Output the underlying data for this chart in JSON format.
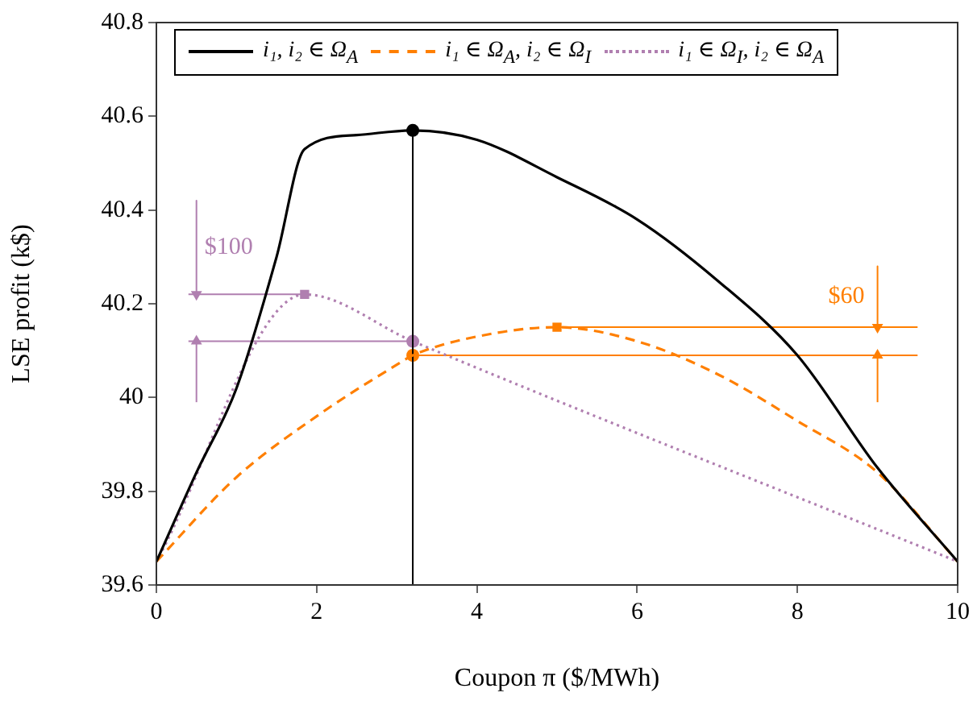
{
  "chart_data": {
    "type": "line",
    "xlabel": "Coupon π ($/MWh)",
    "ylabel": "LSE profit (k$)",
    "xlim": [
      0,
      10
    ],
    "xticks": [
      0,
      2,
      4,
      6,
      8,
      10
    ],
    "ylim": [
      39.6,
      40.8
    ],
    "yticks": [
      39.6,
      39.8,
      40,
      40.2,
      40.4,
      40.6,
      40.8
    ],
    "grid": false,
    "legend": "top",
    "marker": "none",
    "series": [
      {
        "name": "i₁, i₂ ∈ Ω$_{A}$",
        "type": "line",
        "color": "#000000",
        "line_style": "solid",
        "x": [
          0,
          0.5,
          1,
          1.5,
          1.85,
          2.5,
          3.2,
          4,
          5,
          6,
          7,
          8,
          9,
          10
        ],
        "values": [
          39.65,
          39.84,
          40.02,
          40.3,
          40.53,
          40.56,
          40.57,
          40.55,
          40.47,
          40.38,
          40.25,
          40.09,
          39.85,
          39.65
        ]
      },
      {
        "name": "i₁ ∈ Ω$_{A}$, i₂ ∈ Ω$_{I}$",
        "type": "line",
        "color": "#ff7f00",
        "line_style": "dashed",
        "x": [
          0,
          1,
          2,
          3,
          3.2,
          4,
          5,
          6,
          7,
          8,
          9,
          10
        ],
        "values": [
          39.65,
          39.83,
          39.96,
          40.07,
          40.09,
          40.13,
          40.15,
          40.12,
          40.05,
          39.95,
          39.84,
          39.65
        ]
      },
      {
        "name": "i₁ ∈ Ω$_{I}$, i₂ ∈ Ω$_{A}$",
        "type": "line",
        "color": "#b07fb0",
        "line_style": "dotted",
        "x": [
          0,
          1.85,
          3.2,
          10
        ],
        "values": [
          39.65,
          40.22,
          40.12,
          39.65
        ]
      },
      {
        "type": "line",
        "color": "#000000",
        "line_style": "solid",
        "x": [
          3.2,
          3.2
        ],
        "values": [
          39.6,
          40.57
        ]
      },
      {
        "type": "line",
        "color": "#b07fb0",
        "line_style": "solid",
        "x": [
          0.4,
          1.85
        ],
        "values": [
          40.22,
          40.22
        ]
      },
      {
        "type": "line",
        "color": "#b07fb0",
        "line_style": "solid",
        "x": [
          0.4,
          3.2
        ],
        "values": [
          40.12,
          40.12
        ]
      },
      {
        "type": "line",
        "color": "#ff7f00",
        "line_style": "solid",
        "x": [
          5,
          9.5
        ],
        "values": [
          40.15,
          40.15
        ]
      },
      {
        "type": "line",
        "color": "#ff7f00",
        "line_style": "solid",
        "x": [
          3.2,
          9.5
        ],
        "values": [
          40.09,
          40.09
        ]
      },
      {
        "type": "line",
        "color": "#b07fb0",
        "line_style": "solid",
        "marker": "triangle",
        "x": [
          0.5,
          0.5
        ],
        "values": [
          40.42,
          40.22
        ]
      },
      {
        "type": "line",
        "color": "#b07fb0",
        "line_style": "solid",
        "marker": "triangle",
        "x": [
          0.5,
          0.5
        ],
        "values": [
          39.99,
          40.12
        ]
      },
      {
        "type": "line",
        "color": "#ff7f00",
        "line_style": "solid",
        "marker": "triangle",
        "x": [
          9,
          9
        ],
        "values": [
          40.28,
          40.15
        ]
      },
      {
        "type": "line",
        "color": "#ff7f00",
        "line_style": "solid",
        "marker": "triangle",
        "x": [
          9,
          9
        ],
        "values": [
          39.99,
          40.09
        ]
      },
      {
        "type": "scatter",
        "color": "#000000",
        "marker": "circle",
        "x": [
          3.2
        ],
        "values": [
          40.57
        ]
      },
      {
        "type": "scatter",
        "color": "#ff7f00",
        "marker": "circle",
        "x": [
          3.2
        ],
        "values": [
          40.09
        ]
      },
      {
        "type": "scatter",
        "color": "#ff7f00",
        "marker": "square",
        "x": [
          5
        ],
        "values": [
          40.15
        ]
      },
      {
        "type": "scatter",
        "color": "#b07fb0",
        "marker": "square",
        "x": [
          1.85
        ],
        "values": [
          40.22
        ]
      },
      {
        "type": "scatter",
        "color": "#b07fb0",
        "marker": "circle",
        "x": [
          3.2
        ],
        "values": [
          40.12
        ]
      }
    ],
    "annotations": [
      "$100",
      "$60"
    ]
  }
}
